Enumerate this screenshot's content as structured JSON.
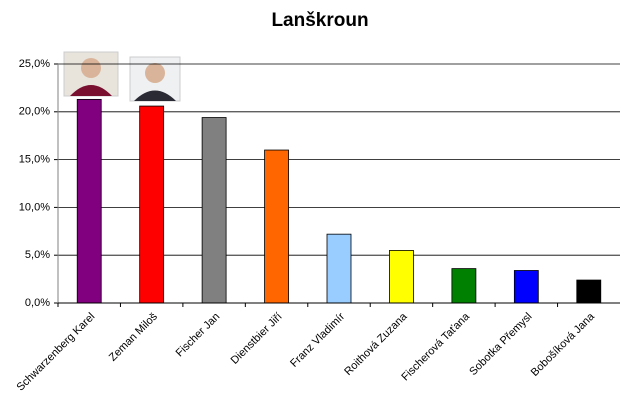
{
  "chart_data": {
    "type": "bar",
    "title": "Lanškroun",
    "categories": [
      "Schwarzenberg Karel",
      "Zeman Miloš",
      "Fischer Jan",
      "Dienstbier Jiří",
      "Franz Vladimír",
      "Roithová Zuzana",
      "Fischerová Taťana",
      "Sobotka Přemysl",
      "Bobošíková Jana"
    ],
    "values": [
      21.3,
      20.6,
      19.4,
      16.0,
      7.2,
      5.5,
      3.6,
      3.4,
      2.4
    ],
    "colors": [
      "#800080",
      "#ff0000",
      "#808080",
      "#ff6600",
      "#99ccff",
      "#ffff00",
      "#008000",
      "#0000ff",
      "#000000"
    ],
    "ylim": [
      0,
      25
    ],
    "yticks": [
      {
        "value": 0,
        "label": "0,0%"
      },
      {
        "value": 5,
        "label": "5,0%"
      },
      {
        "value": 10,
        "label": "10,0%"
      },
      {
        "value": 15,
        "label": "15,0%"
      },
      {
        "value": 20,
        "label": "20,0%"
      },
      {
        "value": 25,
        "label": "25,0%"
      }
    ],
    "grid": true
  }
}
